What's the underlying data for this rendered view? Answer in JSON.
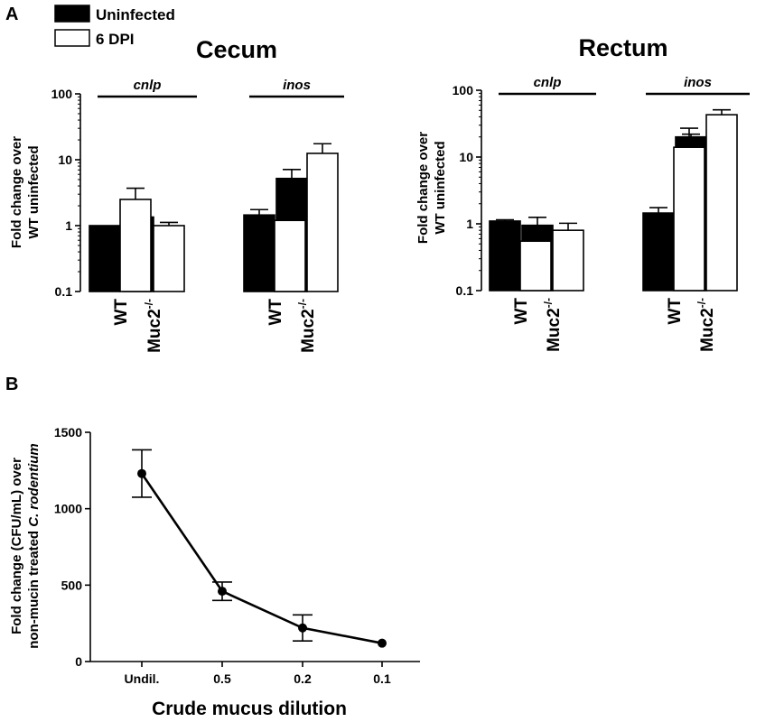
{
  "panel_labels": {
    "a": "A",
    "b": "B"
  },
  "legend": [
    {
      "label": "Uninfected",
      "fill": "#000000"
    },
    {
      "label": "6 DPI",
      "fill": "#ffffff"
    }
  ],
  "chart_data": [
    {
      "id": "cecum",
      "type": "bar",
      "title": "Cecum",
      "ylabel_line1": "Fold change over",
      "ylabel_line2": "WT uninfected",
      "yscale": "log",
      "ylim": [
        0.1,
        100
      ],
      "yticks": [
        "0.1",
        "1",
        "10",
        "100"
      ],
      "ytick_values": [
        0.1,
        1,
        10,
        100
      ],
      "genes": [
        "cnlp",
        "inos"
      ],
      "group_labels": [
        "WT",
        "Muc2",
        "WT",
        "Muc2"
      ],
      "group_sup": [
        "",
        "-/-",
        "",
        "-/-"
      ],
      "series": [
        {
          "name": "Uninfected",
          "values": [
            1.0,
            1.35,
            1.45,
            5.2
          ],
          "errors": [
            0.0,
            0.45,
            0.3,
            1.9
          ]
        },
        {
          "name": "6 DPI",
          "values": [
            2.5,
            1.0,
            1.2,
            12.5
          ],
          "errors": [
            1.2,
            0.12,
            0.5,
            5.0
          ]
        }
      ]
    },
    {
      "id": "rectum",
      "type": "bar",
      "title": "Rectum",
      "ylabel_line1": "Fold change over",
      "ylabel_line2": "WT uninfected",
      "yscale": "log",
      "ylim": [
        0.1,
        100
      ],
      "yticks": [
        "0.1",
        "1",
        "10",
        "100"
      ],
      "ytick_values": [
        0.1,
        1,
        10,
        100
      ],
      "genes": [
        "cnlp",
        "inos"
      ],
      "group_labels": [
        "WT",
        "Muc2",
        "WT",
        "Muc2"
      ],
      "group_sup": [
        "",
        "-/-",
        "",
        "-/-"
      ],
      "series": [
        {
          "name": "Uninfected",
          "values": [
            1.1,
            0.95,
            1.45,
            20.0
          ],
          "errors": [
            0.05,
            0.3,
            0.3,
            2.0
          ]
        },
        {
          "name": "6 DPI",
          "values": [
            0.55,
            0.8,
            14.0,
            43.0
          ],
          "errors": [
            0.12,
            0.22,
            13.0,
            8.0
          ]
        }
      ]
    },
    {
      "id": "dilution",
      "type": "line",
      "xlabel": "Crude mucus dilution",
      "ylabel_line1": "Fold change (CFU/mL) over",
      "ylabel_line2_plain": "non-mucin treated ",
      "ylabel_line2_italic": "C. rodentium",
      "categories": [
        "Undil.",
        "0.5",
        "0.2",
        "0.1"
      ],
      "values": [
        1230,
        460,
        220,
        120
      ],
      "errors": [
        155,
        60,
        85,
        0
      ],
      "ylim": [
        0,
        1500
      ],
      "yticks": [
        0,
        500,
        1000,
        1500
      ]
    }
  ]
}
